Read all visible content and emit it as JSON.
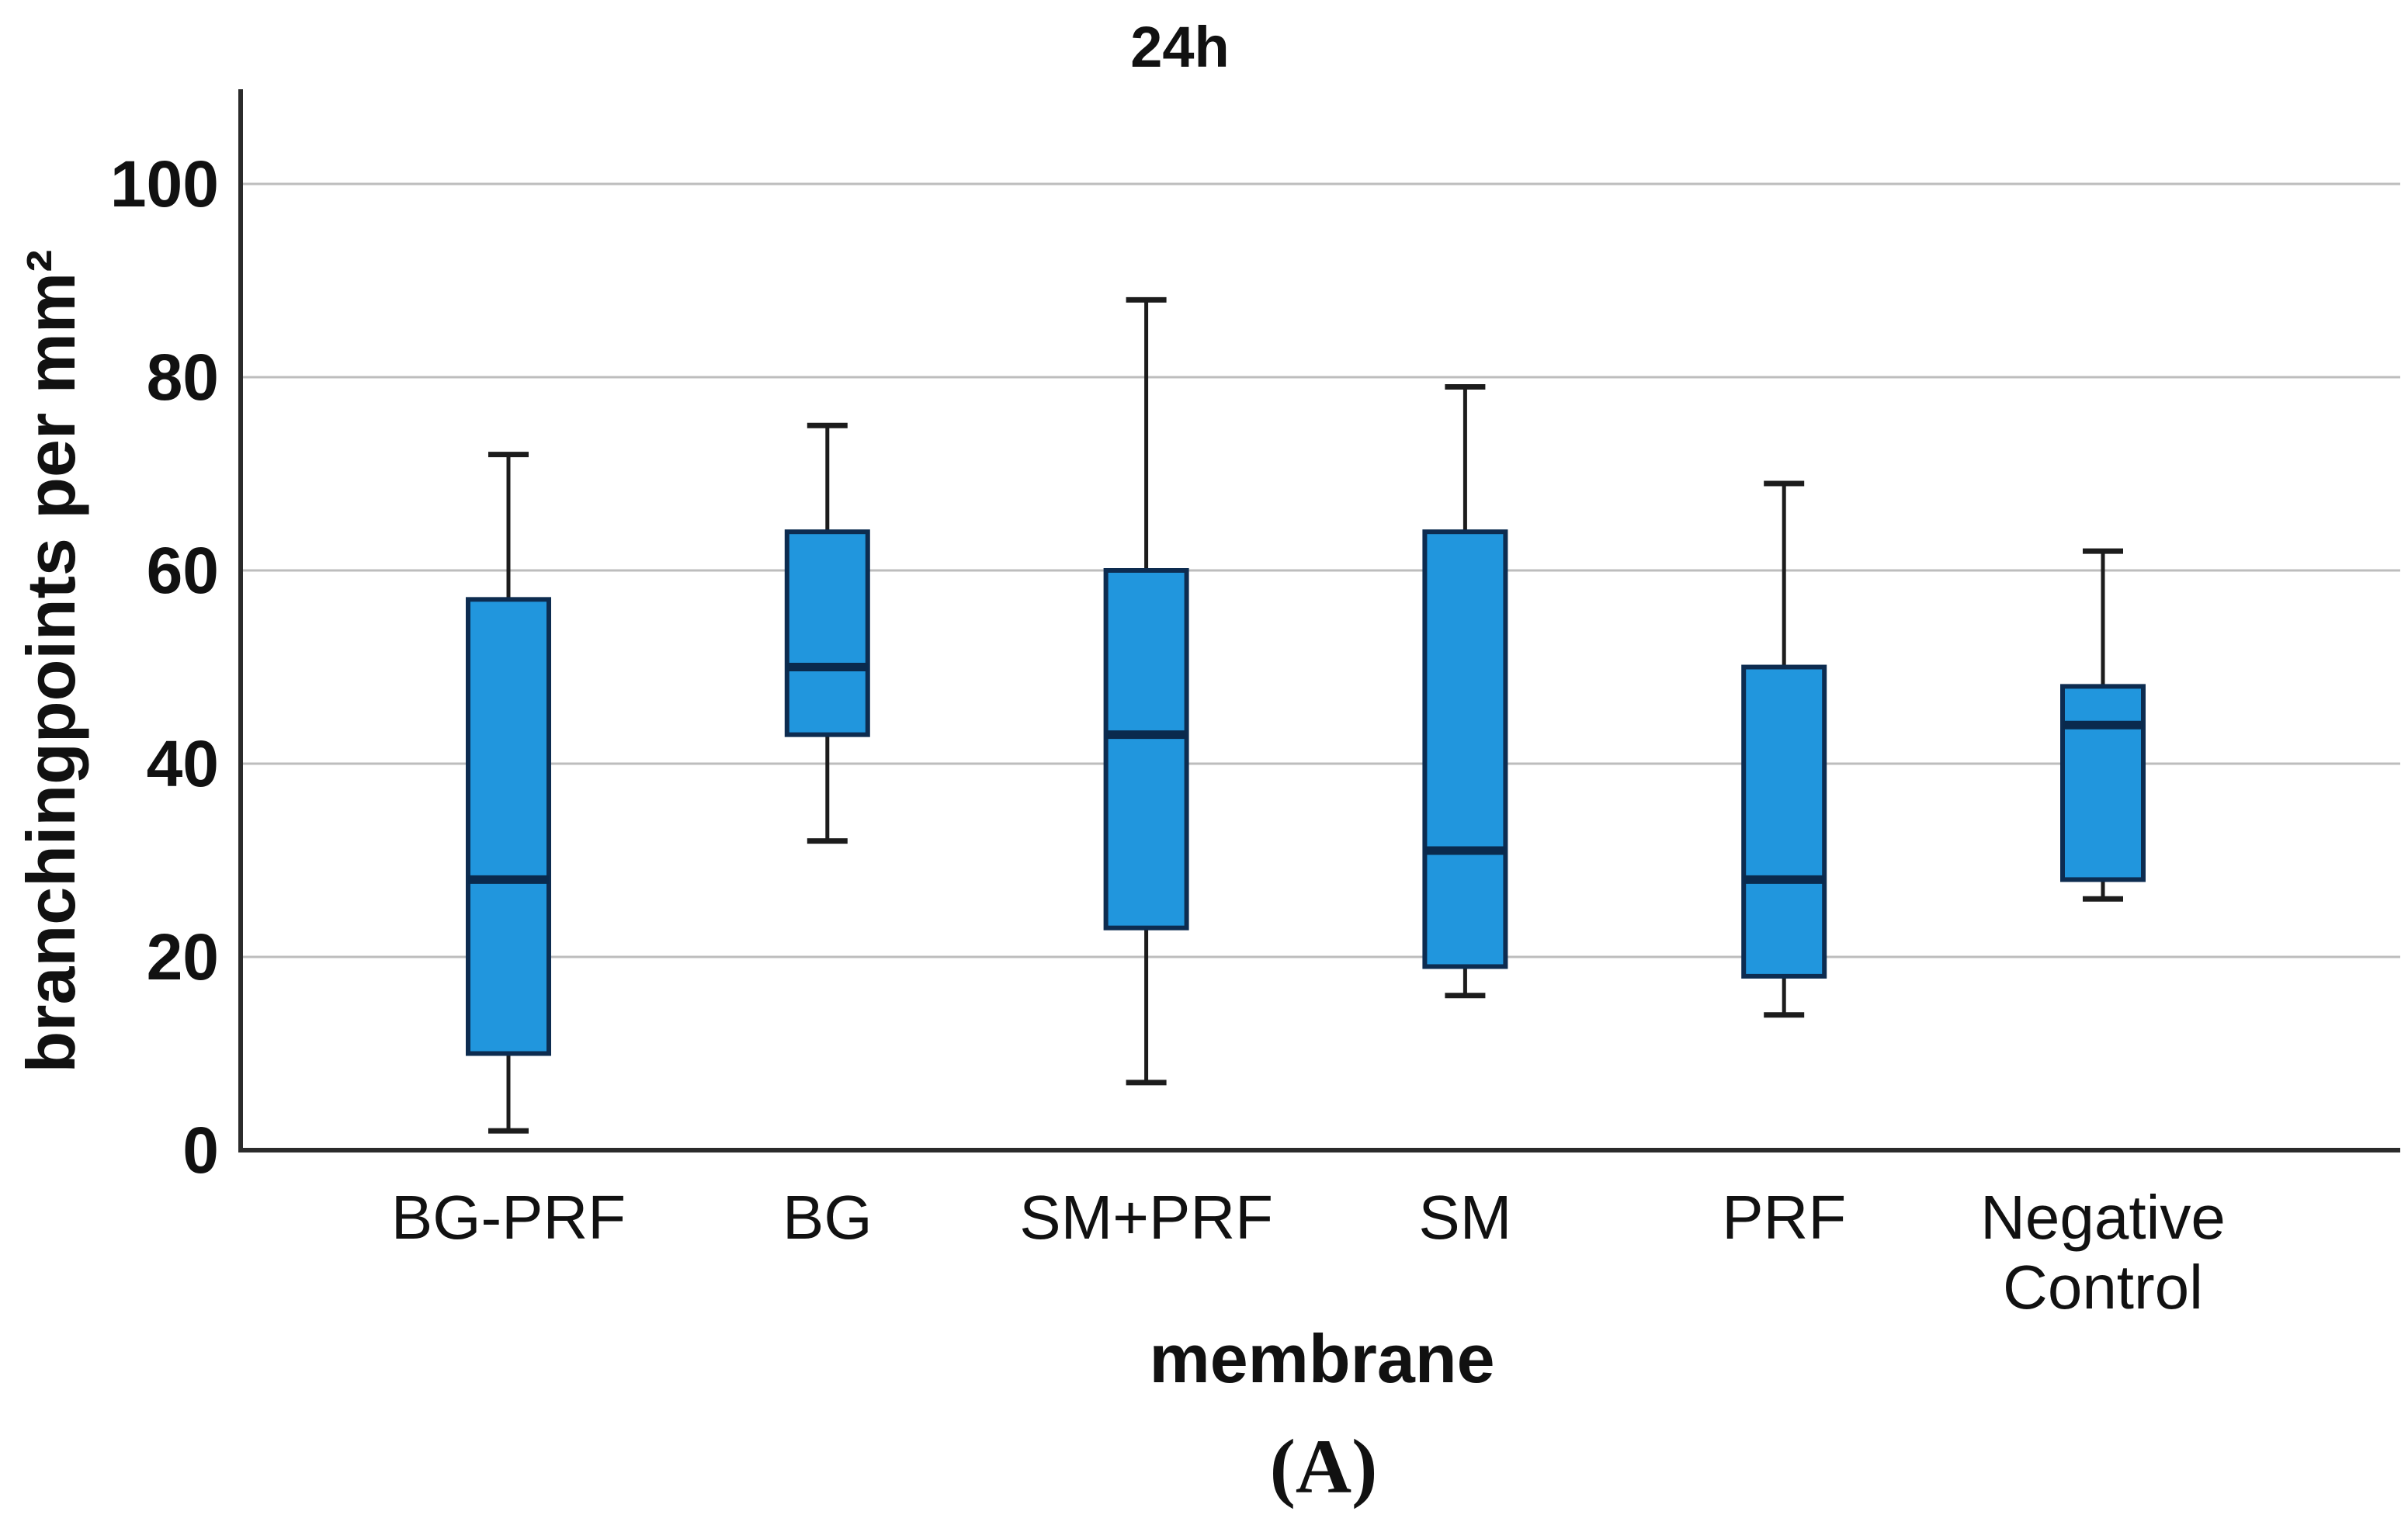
{
  "figure": {
    "title": "24h",
    "y_axis_label": "branchingpoints per mm²",
    "x_axis_label": "membrane",
    "caption": "(A)"
  },
  "chart_data": {
    "type": "boxplot",
    "title": "24h",
    "xlabel": "membrane",
    "ylabel": "branchingpoints per mm²",
    "ylim": [
      0,
      110
    ],
    "yticks": [
      0,
      20,
      40,
      60,
      80,
      100
    ],
    "grid": "horizontal-gridlines",
    "legend": "none",
    "categories": [
      "BG-PRF",
      "BG",
      "SM+PRF",
      "SM",
      "PRF",
      "Negative Control"
    ],
    "series": [
      {
        "name": "BG-PRF",
        "min": 2,
        "q1": 10,
        "median": 28,
        "q3": 57,
        "max": 72
      },
      {
        "name": "BG",
        "min": 32,
        "q1": 43,
        "median": 50,
        "q3": 64,
        "max": 75
      },
      {
        "name": "SM+PRF",
        "min": 7,
        "q1": 23,
        "median": 43,
        "q3": 60,
        "max": 88
      },
      {
        "name": "SM",
        "min": 16,
        "q1": 19,
        "median": 31,
        "q3": 64,
        "max": 79
      },
      {
        "name": "PRF",
        "min": 14,
        "q1": 18,
        "median": 28,
        "q3": 50,
        "max": 69
      },
      {
        "name": "Negative Control",
        "min": 26,
        "q1": 28,
        "median": 44,
        "q3": 48,
        "max": 62
      }
    ],
    "colors": {
      "box_fill": "#2196dd",
      "box_border": "#0d2c50",
      "median_line": "#0a2a4d",
      "whisker": "#1c1c1c",
      "gridline": "#bdbdbd",
      "axis": "#2b2b2b",
      "text": "#111111",
      "background": "#ffffff"
    }
  }
}
